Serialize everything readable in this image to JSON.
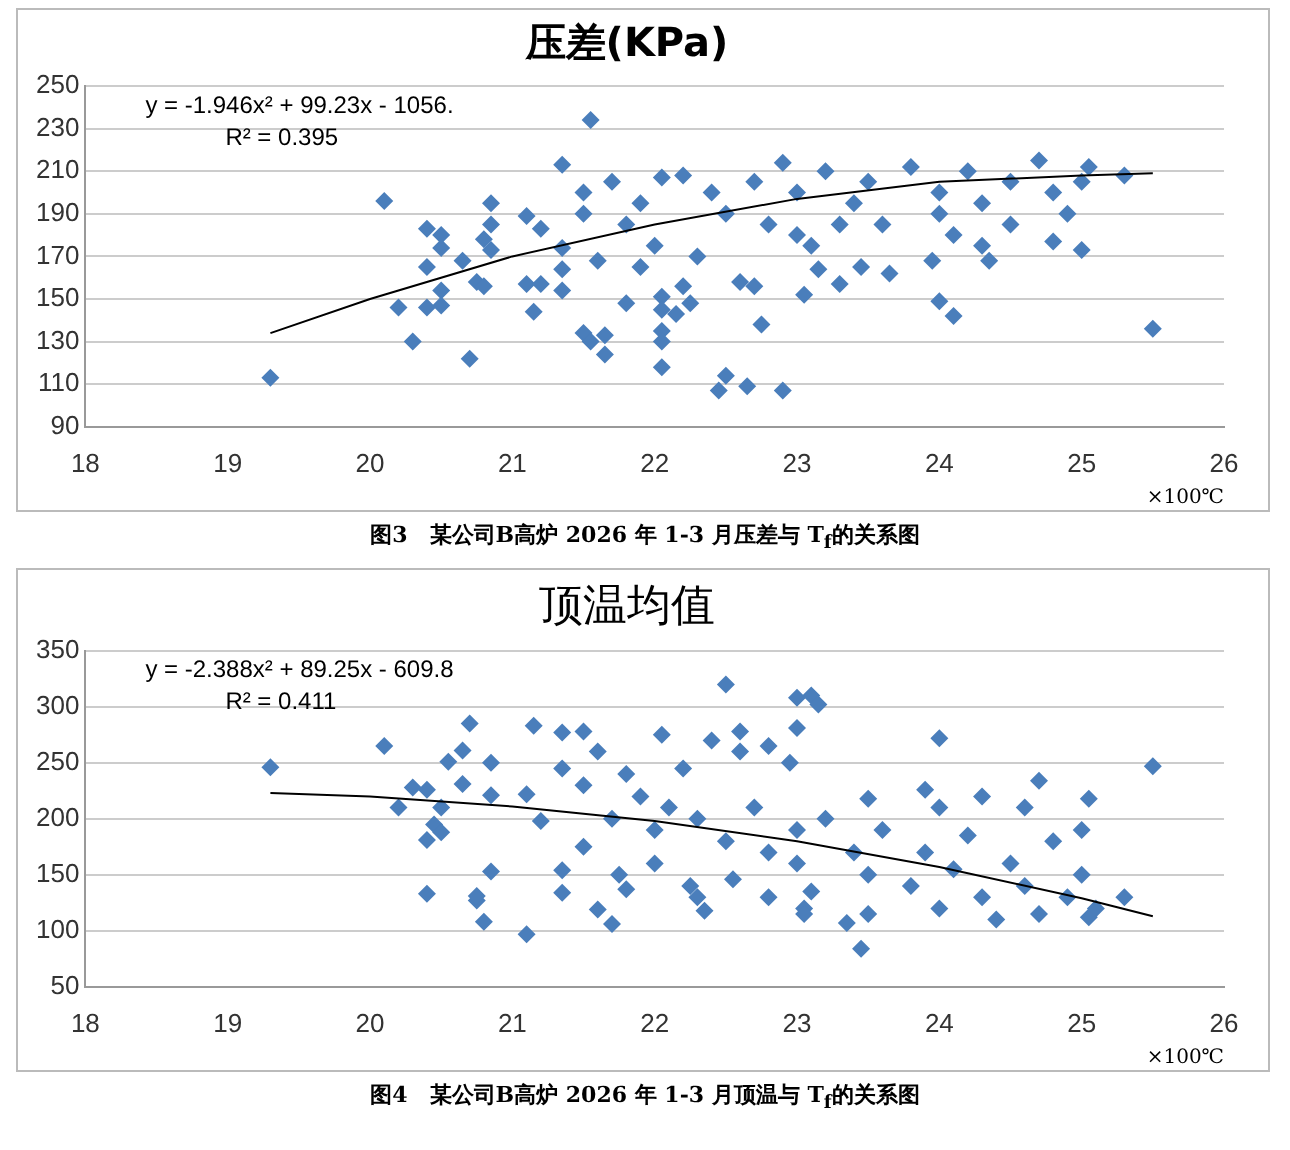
{
  "chart_data": [
    {
      "type": "scatter",
      "title": "压差(KPa)",
      "xlabel": "×100℃",
      "xlim": [
        18,
        26
      ],
      "xticks": [
        18,
        19,
        20,
        21,
        22,
        23,
        24,
        25,
        26
      ],
      "ylim": [
        90,
        250
      ],
      "yticks": [
        90,
        110,
        130,
        150,
        170,
        190,
        210,
        230,
        250
      ],
      "grid": "y",
      "legend": false,
      "marker": "diamond",
      "series": [
        {
          "color": "#4a7ebb",
          "x": [
            19.3,
            20.1,
            20.2,
            20.3,
            20.4,
            20.4,
            20.4,
            20.5,
            20.5,
            20.5,
            20.5,
            20.65,
            20.7,
            20.75,
            20.8,
            20.8,
            20.85,
            20.85,
            20.85,
            21.1,
            21.1,
            21.15,
            21.2,
            21.2,
            21.35,
            21.35,
            21.35,
            21.35,
            21.5,
            21.5,
            21.55,
            21.55,
            21.65,
            21.65,
            21.7,
            21.6,
            21.8,
            21.9,
            22.05,
            22.05,
            22.05,
            22.05,
            22.05,
            22.05,
            22.15,
            22.2,
            22.25,
            22.45,
            22.5,
            22.6,
            22.65,
            22.7,
            22.75,
            22.9,
            22.9,
            23.05,
            23.15,
            23.3,
            23.45,
            23.65,
            23.95,
            24.0,
            24.1,
            24.35,
            24.3,
            24.8,
            25.0,
            25.5,
            25.3,
            25.05,
            22.2,
            22.4,
            22.5,
            22.7,
            22.8,
            23.0,
            23.0,
            23.2,
            23.4,
            23.5,
            23.6,
            23.8,
            24.0,
            24.0,
            24.2,
            24.3,
            24.5,
            24.5,
            24.7,
            24.8,
            24.9,
            25.0,
            21.9,
            21.8,
            21.5,
            22.0,
            22.3,
            23.1,
            23.3,
            24.1
          ],
          "values": [
            113,
            196,
            146,
            130,
            183,
            165,
            146,
            180,
            174,
            147,
            154,
            168,
            122,
            158,
            178,
            156,
            195,
            185,
            173,
            189,
            157,
            144,
            183,
            157,
            213,
            174,
            164,
            154,
            200,
            134,
            234,
            130,
            124,
            133,
            205,
            168,
            148,
            165,
            207,
            151,
            145,
            135,
            130,
            118,
            143,
            156,
            148,
            107,
            114,
            158,
            109,
            156,
            138,
            107,
            214,
            152,
            164,
            157,
            165,
            162,
            168,
            149,
            142,
            168,
            175,
            177,
            173,
            136,
            208,
            212,
            208,
            200,
            190,
            205,
            185,
            200,
            180,
            210,
            195,
            205,
            185,
            212,
            200,
            190,
            210,
            195,
            205,
            185,
            215,
            200,
            190,
            205,
            195,
            185,
            190,
            175,
            170,
            175,
            185,
            180
          ]
        },
        {
          "type": "line",
          "color": "#000000",
          "marker": "none",
          "x": [
            19.3,
            20,
            21,
            22,
            23,
            24,
            25,
            25.5
          ],
          "values": [
            134,
            150,
            170,
            185,
            197,
            205,
            208,
            209
          ]
        }
      ],
      "annotations": [
        "y = -1.946x² + 99.23x - 1056.",
        "R² = 0.395",
        "图3　某公司B高炉 2026 年 1-3 月压差与 T$_{f}$的关系图"
      ]
    },
    {
      "type": "scatter",
      "title": "顶温均值",
      "xlabel": "×100℃",
      "xlim": [
        18,
        26
      ],
      "xticks": [
        18,
        19,
        20,
        21,
        22,
        23,
        24,
        25,
        26
      ],
      "ylim": [
        50,
        350
      ],
      "yticks": [
        50,
        100,
        150,
        200,
        250,
        300,
        350
      ],
      "grid": "y",
      "legend": false,
      "marker": "diamond",
      "series": [
        {
          "color": "#4a7ebb",
          "x": [
            19.3,
            20.1,
            20.2,
            20.3,
            20.4,
            20.4,
            20.4,
            20.45,
            20.5,
            20.5,
            20.55,
            20.65,
            20.65,
            20.7,
            20.75,
            20.75,
            20.8,
            20.85,
            20.85,
            20.85,
            21.1,
            21.15,
            21.1,
            21.2,
            21.35,
            21.35,
            21.35,
            21.35,
            21.5,
            21.5,
            21.6,
            21.6,
            21.7,
            21.75,
            21.8,
            22.05,
            22.0,
            22.25,
            22.3,
            22.35,
            22.4,
            22.5,
            22.55,
            22.6,
            22.6,
            22.8,
            22.8,
            22.95,
            23.0,
            23.0,
            23.1,
            23.15,
            23.05,
            23.1,
            23.05,
            23.35,
            23.45,
            23.5,
            23.5,
            23.9,
            24.0,
            24.0,
            24.3,
            24.6,
            24.7,
            25.05,
            25.5,
            25.3,
            25.0,
            25.05,
            21.5,
            21.7,
            21.9,
            22.0,
            22.2,
            22.3,
            22.5,
            22.7,
            22.8,
            23.0,
            23.0,
            23.2,
            23.4,
            23.5,
            23.6,
            23.8,
            23.9,
            24.0,
            24.1,
            24.2,
            24.3,
            24.4,
            24.5,
            24.6,
            24.7,
            24.8,
            24.9,
            25.0,
            25.1,
            21.8,
            22.1
          ],
          "values": [
            246,
            265,
            210,
            228,
            226,
            181,
            133,
            195,
            188,
            210,
            251,
            231,
            261,
            285,
            127,
            131,
            108,
            250,
            221,
            153,
            97,
            283,
            222,
            198,
            277,
            245,
            154,
            134,
            278,
            175,
            260,
            119,
            106,
            150,
            137,
            275,
            160,
            140,
            130,
            118,
            270,
            320,
            146,
            278,
            260,
            265,
            130,
            250,
            308,
            281,
            310,
            302,
            120,
            135,
            115,
            107,
            84,
            115,
            218,
            226,
            272,
            210,
            220,
            210,
            234,
            218,
            247,
            130,
            190,
            112,
            230,
            200,
            220,
            190,
            245,
            200,
            180,
            210,
            170,
            190,
            160,
            200,
            170,
            150,
            190,
            140,
            170,
            120,
            155,
            185,
            130,
            110,
            160,
            140,
            115,
            180,
            130,
            150,
            120,
            240,
            210
          ]
        },
        {
          "type": "line",
          "color": "#000000",
          "marker": "none",
          "x": [
            19.3,
            20,
            21,
            22,
            23,
            24,
            25,
            25.5
          ],
          "values": [
            223,
            220,
            211,
            198,
            180,
            157,
            129,
            113
          ]
        }
      ],
      "annotations": [
        "y = -2.388x² + 89.25x - 609.8",
        "R² = 0.411",
        "图4　某公司B高炉 2026 年 1-3 月顶温与 T$_{f}$的关系图"
      ]
    }
  ]
}
